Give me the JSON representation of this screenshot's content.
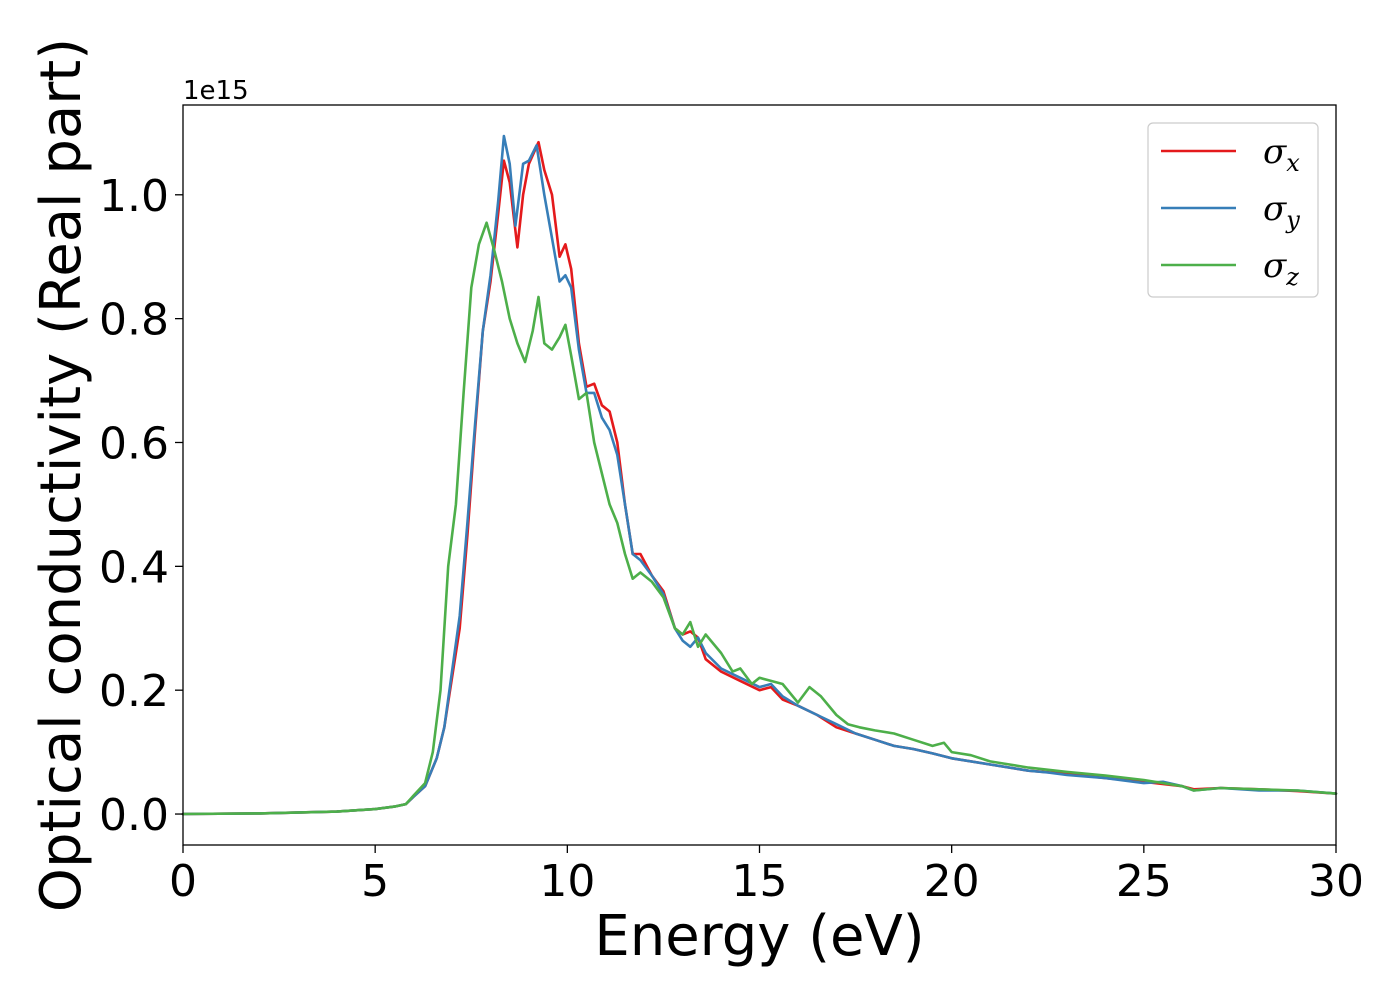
{
  "chart_data": {
    "type": "line",
    "xlabel": "Energy (eV)",
    "ylabel": "Optical conductivity (Real part)",
    "y_offset_label": "1e15",
    "xlim": [
      0,
      30
    ],
    "ylim": [
      -0.05,
      1.145
    ],
    "x_ticks": [
      0,
      5,
      10,
      15,
      20,
      25,
      30
    ],
    "x_tick_labels": [
      "0",
      "5",
      "10",
      "15",
      "20",
      "25",
      "30"
    ],
    "y_ticks": [
      0.0,
      0.2,
      0.4,
      0.6,
      0.8,
      1.0
    ],
    "y_tick_labels": [
      "0.0",
      "0.2",
      "0.4",
      "0.6",
      "0.8",
      "1.0"
    ],
    "grid": false,
    "legend_position": "top-right",
    "series": [
      {
        "name": "σx",
        "name_main": "σ",
        "name_sub": "x",
        "color": "#e41a1c",
        "points": [
          [
            0,
            0
          ],
          [
            2,
            0.001
          ],
          [
            4,
            0.004
          ],
          [
            5,
            0.008
          ],
          [
            5.5,
            0.012
          ],
          [
            5.8,
            0.016
          ],
          [
            6.0,
            0.028
          ],
          [
            6.3,
            0.045
          ],
          [
            6.6,
            0.09
          ],
          [
            6.8,
            0.14
          ],
          [
            7.0,
            0.22
          ],
          [
            7.2,
            0.3
          ],
          [
            7.4,
            0.45
          ],
          [
            7.6,
            0.62
          ],
          [
            7.8,
            0.78
          ],
          [
            8.0,
            0.86
          ],
          [
            8.2,
            0.97
          ],
          [
            8.35,
            1.055
          ],
          [
            8.5,
            1.02
          ],
          [
            8.7,
            0.915
          ],
          [
            8.85,
            1.0
          ],
          [
            9.0,
            1.05
          ],
          [
            9.25,
            1.085
          ],
          [
            9.4,
            1.04
          ],
          [
            9.6,
            1.0
          ],
          [
            9.8,
            0.9
          ],
          [
            9.95,
            0.92
          ],
          [
            10.1,
            0.88
          ],
          [
            10.3,
            0.76
          ],
          [
            10.5,
            0.69
          ],
          [
            10.7,
            0.695
          ],
          [
            10.9,
            0.66
          ],
          [
            11.1,
            0.65
          ],
          [
            11.3,
            0.6
          ],
          [
            11.5,
            0.5
          ],
          [
            11.7,
            0.42
          ],
          [
            11.9,
            0.42
          ],
          [
            12.2,
            0.385
          ],
          [
            12.5,
            0.36
          ],
          [
            12.8,
            0.3
          ],
          [
            13.0,
            0.29
          ],
          [
            13.2,
            0.295
          ],
          [
            13.4,
            0.285
          ],
          [
            13.6,
            0.25
          ],
          [
            14.0,
            0.23
          ],
          [
            14.5,
            0.215
          ],
          [
            15.0,
            0.2
          ],
          [
            15.3,
            0.205
          ],
          [
            15.6,
            0.185
          ],
          [
            16.0,
            0.175
          ],
          [
            16.5,
            0.16
          ],
          [
            17.0,
            0.14
          ],
          [
            17.5,
            0.13
          ],
          [
            18.0,
            0.12
          ],
          [
            18.5,
            0.11
          ],
          [
            19.0,
            0.105
          ],
          [
            19.5,
            0.098
          ],
          [
            20.0,
            0.09
          ],
          [
            21.0,
            0.08
          ],
          [
            22.0,
            0.07
          ],
          [
            23.0,
            0.065
          ],
          [
            24.0,
            0.058
          ],
          [
            25.0,
            0.052
          ],
          [
            26.0,
            0.045
          ],
          [
            26.3,
            0.04
          ],
          [
            27.0,
            0.042
          ],
          [
            28.0,
            0.04
          ],
          [
            29.0,
            0.037
          ],
          [
            30.0,
            0.033
          ]
        ]
      },
      {
        "name": "σy",
        "name_main": "σ",
        "name_sub": "y",
        "color": "#377eb8",
        "points": [
          [
            0,
            0
          ],
          [
            2,
            0.001
          ],
          [
            4,
            0.004
          ],
          [
            5,
            0.008
          ],
          [
            5.5,
            0.012
          ],
          [
            5.8,
            0.016
          ],
          [
            6.0,
            0.028
          ],
          [
            6.3,
            0.045
          ],
          [
            6.6,
            0.09
          ],
          [
            6.8,
            0.14
          ],
          [
            7.0,
            0.23
          ],
          [
            7.2,
            0.32
          ],
          [
            7.4,
            0.47
          ],
          [
            7.6,
            0.63
          ],
          [
            7.8,
            0.78
          ],
          [
            8.0,
            0.87
          ],
          [
            8.2,
            0.99
          ],
          [
            8.35,
            1.095
          ],
          [
            8.5,
            1.05
          ],
          [
            8.65,
            0.95
          ],
          [
            8.85,
            1.05
          ],
          [
            9.0,
            1.055
          ],
          [
            9.2,
            1.08
          ],
          [
            9.4,
            1.0
          ],
          [
            9.6,
            0.93
          ],
          [
            9.8,
            0.86
          ],
          [
            9.95,
            0.87
          ],
          [
            10.1,
            0.85
          ],
          [
            10.3,
            0.75
          ],
          [
            10.5,
            0.68
          ],
          [
            10.7,
            0.68
          ],
          [
            10.9,
            0.64
          ],
          [
            11.1,
            0.62
          ],
          [
            11.3,
            0.58
          ],
          [
            11.5,
            0.5
          ],
          [
            11.7,
            0.42
          ],
          [
            11.9,
            0.41
          ],
          [
            12.2,
            0.385
          ],
          [
            12.5,
            0.355
          ],
          [
            12.8,
            0.3
          ],
          [
            13.0,
            0.28
          ],
          [
            13.2,
            0.27
          ],
          [
            13.4,
            0.285
          ],
          [
            13.6,
            0.26
          ],
          [
            14.0,
            0.235
          ],
          [
            14.5,
            0.22
          ],
          [
            15.0,
            0.205
          ],
          [
            15.3,
            0.21
          ],
          [
            15.6,
            0.19
          ],
          [
            16.0,
            0.175
          ],
          [
            16.5,
            0.16
          ],
          [
            17.0,
            0.145
          ],
          [
            17.5,
            0.13
          ],
          [
            18.0,
            0.12
          ],
          [
            18.5,
            0.11
          ],
          [
            19.0,
            0.105
          ],
          [
            19.5,
            0.098
          ],
          [
            20.0,
            0.09
          ],
          [
            21.0,
            0.08
          ],
          [
            22.0,
            0.07
          ],
          [
            22.5,
            0.067
          ],
          [
            23.0,
            0.063
          ],
          [
            24.0,
            0.058
          ],
          [
            25.0,
            0.05
          ],
          [
            25.5,
            0.052
          ],
          [
            26.0,
            0.045
          ],
          [
            26.3,
            0.038
          ],
          [
            27.0,
            0.042
          ],
          [
            28.0,
            0.038
          ],
          [
            29.0,
            0.038
          ],
          [
            30.0,
            0.033
          ]
        ]
      },
      {
        "name": "σz",
        "name_main": "σ",
        "name_sub": "z",
        "color": "#4daf4a",
        "points": [
          [
            0,
            0
          ],
          [
            2,
            0.001
          ],
          [
            4,
            0.004
          ],
          [
            5,
            0.008
          ],
          [
            5.5,
            0.012
          ],
          [
            5.8,
            0.016
          ],
          [
            6.0,
            0.03
          ],
          [
            6.3,
            0.05
          ],
          [
            6.5,
            0.1
          ],
          [
            6.7,
            0.2
          ],
          [
            6.9,
            0.4
          ],
          [
            7.1,
            0.5
          ],
          [
            7.3,
            0.68
          ],
          [
            7.5,
            0.85
          ],
          [
            7.7,
            0.92
          ],
          [
            7.9,
            0.955
          ],
          [
            8.1,
            0.91
          ],
          [
            8.3,
            0.86
          ],
          [
            8.5,
            0.8
          ],
          [
            8.7,
            0.76
          ],
          [
            8.9,
            0.73
          ],
          [
            9.1,
            0.78
          ],
          [
            9.25,
            0.835
          ],
          [
            9.4,
            0.76
          ],
          [
            9.6,
            0.75
          ],
          [
            9.8,
            0.77
          ],
          [
            9.95,
            0.79
          ],
          [
            10.1,
            0.74
          ],
          [
            10.3,
            0.67
          ],
          [
            10.5,
            0.68
          ],
          [
            10.7,
            0.6
          ],
          [
            10.9,
            0.55
          ],
          [
            11.1,
            0.5
          ],
          [
            11.3,
            0.47
          ],
          [
            11.5,
            0.42
          ],
          [
            11.7,
            0.38
          ],
          [
            11.9,
            0.39
          ],
          [
            12.2,
            0.375
          ],
          [
            12.5,
            0.35
          ],
          [
            12.8,
            0.3
          ],
          [
            13.0,
            0.29
          ],
          [
            13.2,
            0.31
          ],
          [
            13.4,
            0.27
          ],
          [
            13.6,
            0.29
          ],
          [
            14.0,
            0.26
          ],
          [
            14.3,
            0.23
          ],
          [
            14.5,
            0.235
          ],
          [
            14.8,
            0.21
          ],
          [
            15.0,
            0.22
          ],
          [
            15.3,
            0.215
          ],
          [
            15.6,
            0.21
          ],
          [
            16.0,
            0.18
          ],
          [
            16.3,
            0.205
          ],
          [
            16.6,
            0.19
          ],
          [
            17.0,
            0.16
          ],
          [
            17.3,
            0.145
          ],
          [
            17.6,
            0.14
          ],
          [
            18.0,
            0.135
          ],
          [
            18.5,
            0.13
          ],
          [
            19.0,
            0.12
          ],
          [
            19.5,
            0.11
          ],
          [
            19.8,
            0.115
          ],
          [
            20.0,
            0.1
          ],
          [
            20.5,
            0.095
          ],
          [
            21.0,
            0.085
          ],
          [
            22.0,
            0.075
          ],
          [
            23.0,
            0.068
          ],
          [
            24.0,
            0.062
          ],
          [
            25.0,
            0.055
          ],
          [
            26.0,
            0.045
          ],
          [
            26.3,
            0.038
          ],
          [
            27.0,
            0.042
          ],
          [
            28.0,
            0.04
          ],
          [
            29.0,
            0.038
          ],
          [
            30.0,
            0.033
          ]
        ]
      }
    ]
  }
}
